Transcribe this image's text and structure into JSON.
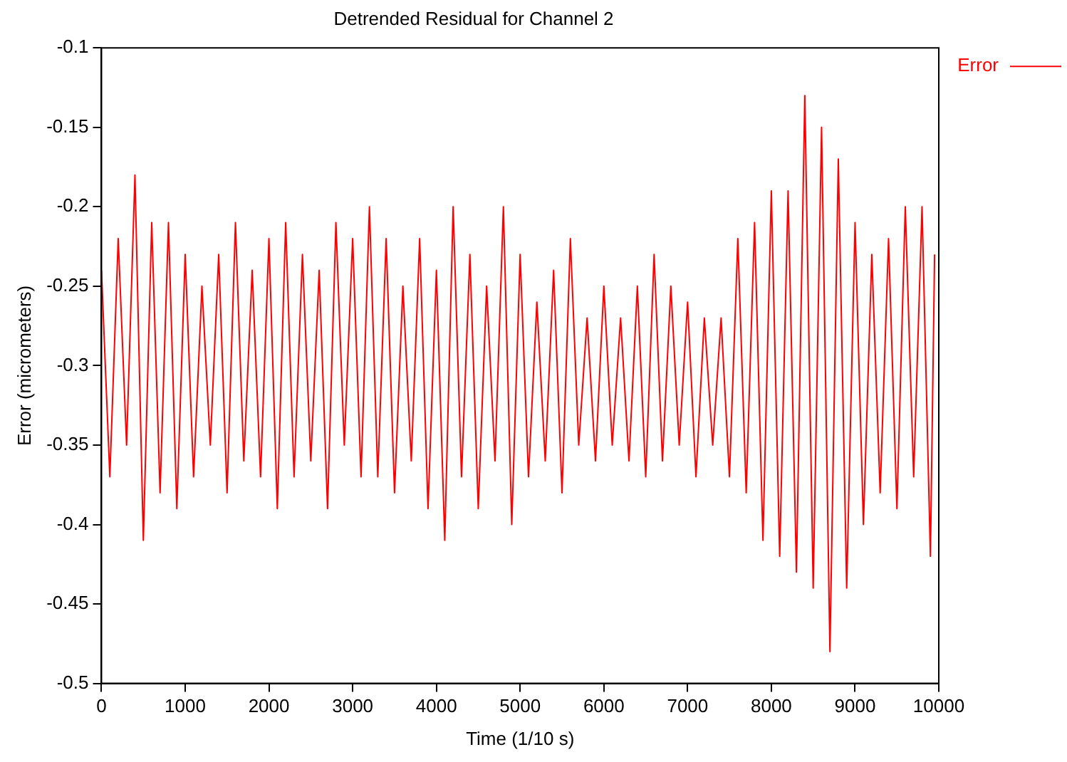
{
  "chart_data": {
    "type": "line",
    "title": "Detrended Residual for Channel 2",
    "xlabel": "Time (1/10 s)",
    "ylabel": "Error (micrometers)",
    "x": [
      0,
      100,
      200,
      300,
      400,
      500,
      600,
      700,
      800,
      900,
      1000,
      1100,
      1200,
      1300,
      1400,
      1500,
      1600,
      1700,
      1800,
      1900,
      2000,
      2100,
      2200,
      2300,
      2400,
      2500,
      2600,
      2700,
      2800,
      2900,
      3000,
      3100,
      3200,
      3300,
      3400,
      3500,
      3600,
      3700,
      3800,
      3900,
      4000,
      4100,
      4200,
      4300,
      4400,
      4500,
      4600,
      4700,
      4800,
      4900,
      5000,
      5100,
      5200,
      5300,
      5400,
      5500,
      5600,
      5700,
      5800,
      5900,
      6000,
      6100,
      6200,
      6300,
      6400,
      6500,
      6600,
      6700,
      6800,
      6900,
      7000,
      7100,
      7200,
      7300,
      7400,
      7500,
      7600,
      7700,
      7800,
      7900,
      8000,
      8100,
      8200,
      8300,
      8400,
      8500,
      8600,
      8700,
      8800,
      8900,
      9000,
      9100,
      9200,
      9300,
      9400,
      9500,
      9600,
      9700,
      9800,
      9900,
      9950
    ],
    "series": [
      {
        "name": "Error",
        "color": "#ff0000",
        "values": [
          -0.24,
          -0.37,
          -0.22,
          -0.35,
          -0.18,
          -0.41,
          -0.21,
          -0.38,
          -0.21,
          -0.39,
          -0.23,
          -0.37,
          -0.25,
          -0.35,
          -0.23,
          -0.38,
          -0.21,
          -0.36,
          -0.24,
          -0.37,
          -0.22,
          -0.39,
          -0.21,
          -0.37,
          -0.23,
          -0.36,
          -0.24,
          -0.39,
          -0.21,
          -0.35,
          -0.22,
          -0.37,
          -0.2,
          -0.37,
          -0.22,
          -0.38,
          -0.25,
          -0.36,
          -0.22,
          -0.39,
          -0.24,
          -0.41,
          -0.2,
          -0.37,
          -0.23,
          -0.39,
          -0.25,
          -0.36,
          -0.2,
          -0.4,
          -0.23,
          -0.37,
          -0.26,
          -0.36,
          -0.24,
          -0.38,
          -0.22,
          -0.35,
          -0.27,
          -0.36,
          -0.25,
          -0.35,
          -0.27,
          -0.36,
          -0.25,
          -0.37,
          -0.23,
          -0.36,
          -0.25,
          -0.35,
          -0.26,
          -0.37,
          -0.27,
          -0.35,
          -0.27,
          -0.37,
          -0.22,
          -0.38,
          -0.21,
          -0.41,
          -0.19,
          -0.42,
          -0.19,
          -0.43,
          -0.13,
          -0.44,
          -0.15,
          -0.48,
          -0.17,
          -0.44,
          -0.21,
          -0.4,
          -0.23,
          -0.38,
          -0.22,
          -0.39,
          -0.2,
          -0.37,
          -0.2,
          -0.42,
          -0.23
        ]
      }
    ],
    "xlim": [
      0,
      10000
    ],
    "xticks": [
      0,
      1000,
      2000,
      3000,
      4000,
      5000,
      6000,
      7000,
      8000,
      9000,
      10000
    ],
    "ylim": [
      -0.5,
      -0.1
    ],
    "yticks": [
      -0.5,
      -0.45,
      -0.4,
      -0.35,
      -0.3,
      -0.25,
      -0.2,
      -0.15,
      -0.1
    ],
    "legend": "top right",
    "marker": "none",
    "line_style": "solid",
    "grid": false
  }
}
